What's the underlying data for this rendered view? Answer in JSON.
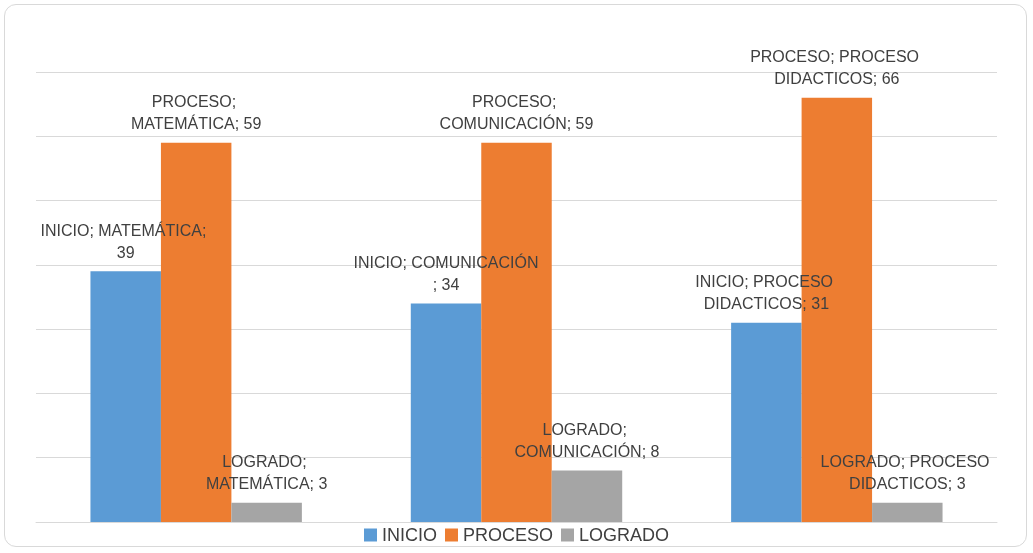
{
  "chart_data": {
    "type": "bar",
    "categories": [
      null,
      null,
      null
    ],
    "series": [
      {
        "name": "INICIO",
        "color": "#5b9bd5",
        "values": [
          39,
          34,
          31
        ],
        "value_labels": [
          "INICIO; MATEMÁTICA; 39",
          "INICIO; COMUNICACIÓN; 34",
          "INICIO; PROCESO DIDACTICOS; 31"
        ]
      },
      {
        "name": "PROCESO",
        "color": "#ed7d31",
        "values": [
          59,
          59,
          66
        ],
        "value_labels": [
          "PROCESO; MATEMÁTICA; 59",
          "PROCESO; COMUNICACIÓN; 59",
          "PROCESO; PROCESO DIDACTICOS; 66"
        ]
      },
      {
        "name": "LOGRADO",
        "color": "#a5a5a5",
        "values": [
          3,
          8,
          3
        ],
        "value_labels": [
          "LOGRADO; MATEMÁTICA; 3",
          "LOGRADO; COMUNICACIÓN; 8",
          "LOGRADO; PROCESO DIDACTICOS; 3"
        ]
      }
    ],
    "ylim": [
      0,
      70
    ],
    "yticks": [
      {
        "value": 0,
        "label": null
      },
      {
        "value": 10,
        "label": null
      },
      {
        "value": 20,
        "label": null
      },
      {
        "value": 30,
        "label": null
      },
      {
        "value": 40,
        "label": null
      },
      {
        "value": 50,
        "label": null
      },
      {
        "value": 60,
        "label": null
      },
      {
        "value": 70,
        "label": null
      }
    ],
    "grid": "y",
    "legend": "bottom"
  }
}
